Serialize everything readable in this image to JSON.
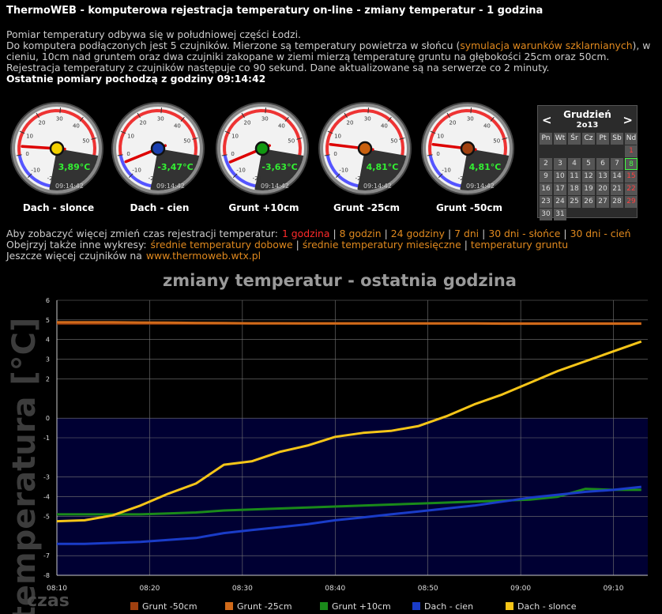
{
  "header": {
    "title": "ThermoWEB - komputerowa rejestracja temperatury on-line - zmiany temperatur - 1 godzina",
    "line1": "Pomiar temperatury odbywa się w południowej części Łodzi.",
    "line2_before": "Do komputera podłączonych jest 5 czujników. Mierzone są temperatury powietrza w słońcu (",
    "line2_link": "symulacja warunków szklarnianych",
    "line2_after": "), w cieniu, 10cm nad gruntem oraz dwa czujniki zakopane w ziemi mierzą temperaturę gruntu na głębokości 25cm oraz 50cm.",
    "line3": "Rejestracja temperatury z czujników następuje co 90 sekund. Dane aktualizowane są na serwerze co 2 minuty.",
    "last": "Ostatnie pomiary pochodzą z godziny 09:14:42"
  },
  "gauges": {
    "dial_ticks": [
      -20,
      -10,
      0,
      10,
      20,
      30,
      40,
      50,
      60
    ],
    "items": [
      {
        "name": "Dach - slonce",
        "value": 3.89,
        "value_label": "3,89°C",
        "time": "09:14:42",
        "color": "#f2d000"
      },
      {
        "name": "Dach - cien",
        "value": -3.47,
        "value_label": "-3,47°C",
        "time": "09:14:42",
        "color": "#1a3fb0"
      },
      {
        "name": "Grunt +10cm",
        "value": -3.63,
        "value_label": "-3,63°C",
        "time": "09:14:42",
        "color": "#119911"
      },
      {
        "name": "Grunt -25cm",
        "value": 4.81,
        "value_label": "4,81°C",
        "time": "09:14:42",
        "color": "#c8600f"
      },
      {
        "name": "Grunt -50cm",
        "value": 4.81,
        "value_label": "4,81°C",
        "time": "09:14:42",
        "color": "#a0400f"
      }
    ]
  },
  "calendar": {
    "prev": "<",
    "next": ">",
    "month": "Grudzień",
    "year": "2o13",
    "weekdays": [
      "Pn",
      "Wt",
      "Śr",
      "Cz",
      "Pt",
      "Sb",
      "Nd"
    ],
    "weeks": [
      [
        null,
        null,
        null,
        null,
        null,
        null,
        1
      ],
      [
        2,
        3,
        4,
        5,
        6,
        7,
        8
      ],
      [
        9,
        10,
        11,
        12,
        13,
        14,
        15
      ],
      [
        16,
        17,
        18,
        19,
        20,
        21,
        22
      ],
      [
        23,
        24,
        25,
        26,
        27,
        28,
        29
      ],
      [
        30,
        31
      ]
    ],
    "today": 8
  },
  "nav": {
    "separator": "|",
    "active": 0,
    "rows": [
      {
        "lead": "Aby zobaczyć więcej zmień czas rejestracji temperatur:",
        "links": [
          "1 godzina",
          "8 godzin",
          "24 godziny",
          "7 dni",
          "30 dni - słońce",
          "30 dni - cień"
        ]
      },
      {
        "lead": "Obejrzyj także inne wykresy:",
        "links": [
          "średnie temperatury dobowe",
          "średnie temperatury miesięczne",
          "temperatury gruntu"
        ]
      },
      {
        "lead": "Jeszcze więcej czujników na",
        "links": [
          "www.thermoweb.wtx.pl"
        ]
      }
    ]
  },
  "chart_data": {
    "type": "line",
    "title": "zmiany temperatur - ostatnia godzina",
    "xlabel": "czas",
    "ylabel": "temperatura [°C]",
    "x": [
      490,
      493,
      496,
      499,
      502,
      505,
      508,
      511,
      514,
      517,
      520,
      523,
      526,
      529,
      532,
      535,
      538,
      541,
      544,
      547,
      550,
      553
    ],
    "xlim": [
      490,
      553.7
    ],
    "xticks": [
      {
        "value": 490,
        "label": "08:10"
      },
      {
        "value": 500,
        "label": "08:20"
      },
      {
        "value": 510,
        "label": "08:30"
      },
      {
        "value": 520,
        "label": "08:40"
      },
      {
        "value": 530,
        "label": "08:50"
      },
      {
        "value": 540,
        "label": "09:00"
      },
      {
        "value": 550,
        "label": "09:10"
      }
    ],
    "ylim": [
      -8,
      6
    ],
    "yticks": [
      6,
      5,
      4,
      3,
      2,
      0,
      -1,
      -3,
      -4,
      -5,
      -7,
      -8
    ],
    "grid": true,
    "below_zero_color": "#000033",
    "series": [
      {
        "name": "Grunt -50cm",
        "color": "#a0400f",
        "values": [
          4.82,
          4.82,
          4.82,
          4.82,
          4.82,
          4.82,
          4.82,
          4.82,
          4.82,
          4.82,
          4.82,
          4.82,
          4.82,
          4.82,
          4.82,
          4.82,
          4.82,
          4.82,
          4.82,
          4.82,
          4.82,
          4.82
        ]
      },
      {
        "name": "Grunt -25cm",
        "color": "#d06a1a",
        "values": [
          4.88,
          4.88,
          4.88,
          4.87,
          4.86,
          4.85,
          4.84,
          4.83,
          4.83,
          4.82,
          4.82,
          4.82,
          4.82,
          4.82,
          4.82,
          4.82,
          4.81,
          4.81,
          4.81,
          4.81,
          4.81,
          4.81
        ]
      },
      {
        "name": "Grunt +10cm",
        "color": "#1a8a1a",
        "values": [
          -4.9,
          -4.9,
          -4.9,
          -4.9,
          -4.85,
          -4.8,
          -4.7,
          -4.65,
          -4.6,
          -4.55,
          -4.5,
          -4.45,
          -4.4,
          -4.35,
          -4.3,
          -4.25,
          -4.2,
          -4.15,
          -4.0,
          -3.6,
          -3.65,
          -3.65
        ]
      },
      {
        "name": "Dach - cien",
        "color": "#1a3cc8",
        "values": [
          -6.4,
          -6.4,
          -6.35,
          -6.3,
          -6.2,
          -6.1,
          -5.85,
          -5.7,
          -5.55,
          -5.4,
          -5.2,
          -5.05,
          -4.9,
          -4.75,
          -4.6,
          -4.45,
          -4.25,
          -4.05,
          -3.9,
          -3.75,
          -3.65,
          -3.5
        ]
      },
      {
        "name": "Dach - slonce",
        "color": "#f5c518",
        "values": [
          -5.25,
          -5.2,
          -4.95,
          -4.45,
          -3.85,
          -3.33,
          -2.37,
          -2.2,
          -1.72,
          -1.4,
          -0.95,
          -0.75,
          -0.65,
          -0.4,
          0.1,
          0.7,
          1.2,
          1.8,
          2.4,
          2.9,
          3.4,
          3.9
        ]
      }
    ]
  }
}
